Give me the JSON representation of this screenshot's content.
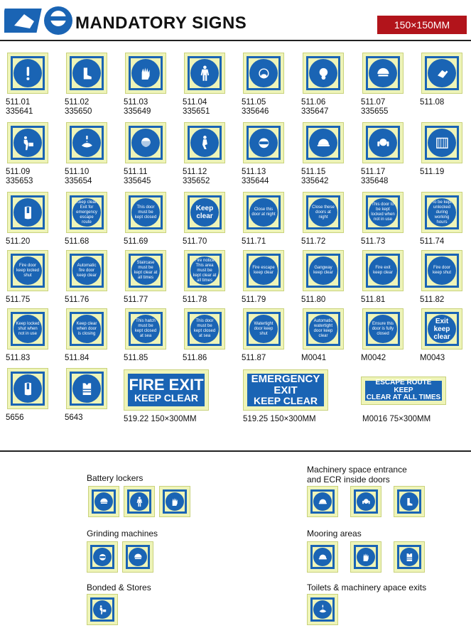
{
  "header": {
    "title": "MANDATORY SIGNS",
    "size": "150×150MM"
  },
  "signs": [
    {
      "code": "511.01",
      "ref": "335641",
      "icon": "exclamation",
      "text": ""
    },
    {
      "code": "511.02",
      "ref": "335650",
      "icon": "boots",
      "text": ""
    },
    {
      "code": "511.03",
      "ref": "335649",
      "icon": "gloves",
      "text": ""
    },
    {
      "code": "511.04",
      "ref": "335651",
      "icon": "overalls",
      "text": ""
    },
    {
      "code": "511.05",
      "ref": "335646",
      "icon": "dust-mask",
      "text": ""
    },
    {
      "code": "511.06",
      "ref": "335647",
      "icon": "respirator",
      "text": ""
    },
    {
      "code": "511.07",
      "ref": "335655",
      "icon": "face-shield",
      "text": ""
    },
    {
      "code": "511.08",
      "ref": "",
      "icon": "hand",
      "text": ""
    },
    {
      "code": "511.09",
      "ref": "335653",
      "icon": "lifting",
      "text": ""
    },
    {
      "code": "511.10",
      "ref": "335654",
      "icon": "hand-wash",
      "text": ""
    },
    {
      "code": "511.11",
      "ref": "335645",
      "icon": "visor",
      "text": ""
    },
    {
      "code": "511.12",
      "ref": "335652",
      "icon": "kneeling",
      "text": ""
    },
    {
      "code": "511.13",
      "ref": "335644",
      "icon": "goggles",
      "text": ""
    },
    {
      "code": "511.15",
      "ref": "335642",
      "icon": "helmet",
      "text": ""
    },
    {
      "code": "511.17",
      "ref": "335648",
      "icon": "ear-defenders",
      "text": ""
    },
    {
      "code": "511.19",
      "ref": "",
      "icon": "guard",
      "text": ""
    },
    {
      "code": "511.20",
      "ref": "",
      "icon": "lifejacket",
      "text": ""
    },
    {
      "code": "511.68",
      "ref": "",
      "icon": "",
      "text": "Keep clear. Exit for emergency escape route"
    },
    {
      "code": "511.69",
      "ref": "",
      "icon": "",
      "text": "This door must be kept closed"
    },
    {
      "code": "511.70",
      "ref": "",
      "icon": "",
      "text": "Keep clear",
      "big": true
    },
    {
      "code": "511.71",
      "ref": "",
      "icon": "",
      "text": "Close this door at night"
    },
    {
      "code": "511.72",
      "ref": "",
      "icon": "",
      "text": "Close these doors at night"
    },
    {
      "code": "511.73",
      "ref": "",
      "icon": "",
      "text": "This door to be kept locked when not in use"
    },
    {
      "code": "511.74",
      "ref": "",
      "icon": "",
      "text": "To be kept unlocked during working hours"
    },
    {
      "code": "511.75",
      "ref": "",
      "icon": "",
      "text": "Fire door keep locked shut"
    },
    {
      "code": "511.76",
      "ref": "",
      "icon": "",
      "text": "Automatic fire door keep clear"
    },
    {
      "code": "511.77",
      "ref": "",
      "icon": "",
      "text": "Staircase must be kept clear at all times"
    },
    {
      "code": "511.78",
      "ref": "",
      "icon": "",
      "text": "Fire notice This area must be kept clear at all times"
    },
    {
      "code": "511.79",
      "ref": "",
      "icon": "",
      "text": "Fire escape keep clear"
    },
    {
      "code": "511.80",
      "ref": "",
      "icon": "",
      "text": "Gangway keep clear"
    },
    {
      "code": "511.81",
      "ref": "",
      "icon": "",
      "text": "Fire exit keep clear"
    },
    {
      "code": "511.82",
      "ref": "",
      "icon": "",
      "text": "Fire door keep shut"
    },
    {
      "code": "511.83",
      "ref": "",
      "icon": "",
      "text": "Keep locked shut when not in use"
    },
    {
      "code": "511.84",
      "ref": "",
      "icon": "",
      "text": "Keep clear when door is closing"
    },
    {
      "code": "511.85",
      "ref": "",
      "icon": "",
      "text": "This hatch must be kept closed at sea"
    },
    {
      "code": "511.86",
      "ref": "",
      "icon": "",
      "text": "This door must be kept closed at sea"
    },
    {
      "code": "511.87",
      "ref": "",
      "icon": "",
      "text": "Watertight door keep shut"
    },
    {
      "code": "M0041",
      "ref": "",
      "icon": "",
      "text": "Automatic watertight door keep clear"
    },
    {
      "code": "M0042",
      "ref": "",
      "icon": "",
      "text": "Ensure this door is fully closed"
    },
    {
      "code": "M0043",
      "ref": "",
      "icon": "",
      "text": "Exit keep clear",
      "big": true
    },
    {
      "code": "5656",
      "ref": "",
      "icon": "lifejacket",
      "text": ""
    },
    {
      "code": "5643",
      "ref": "",
      "icon": "hi-vis-vest",
      "text": ""
    }
  ],
  "wide_signs": [
    {
      "line1": "FIRE EXIT",
      "line2": "KEEP CLEAR",
      "caption": "519.22 150×300MM"
    },
    {
      "line1": "EMERGENCY EXIT",
      "line2": "KEEP CLEAR",
      "caption": "519.25 150×300MM"
    },
    {
      "line1": "ESCAPE ROUTE KEEP",
      "line2": "CLEAR AT ALL TIMES",
      "caption": "M0016 75×300MM"
    }
  ],
  "groups": [
    {
      "label": "Battery lockers",
      "icons": [
        "face-shield",
        "overalls",
        "gloves"
      ]
    },
    {
      "label": "Grinding machines",
      "icons": [
        "goggles",
        "face-shield"
      ]
    },
    {
      "label": "Bonded & Stores",
      "icons": [
        "lifting"
      ]
    },
    {
      "label": "Machinery space entrance\nand ECR inside doors",
      "icons": [
        "helmet",
        "ear-defenders",
        "boots"
      ]
    },
    {
      "label": "Mooring areas",
      "icons": [
        "helmet",
        "gloves",
        "hi-vis-vest"
      ]
    },
    {
      "label": "Toilets & machinery apace exits",
      "icons": [
        "hand-wash"
      ]
    }
  ]
}
